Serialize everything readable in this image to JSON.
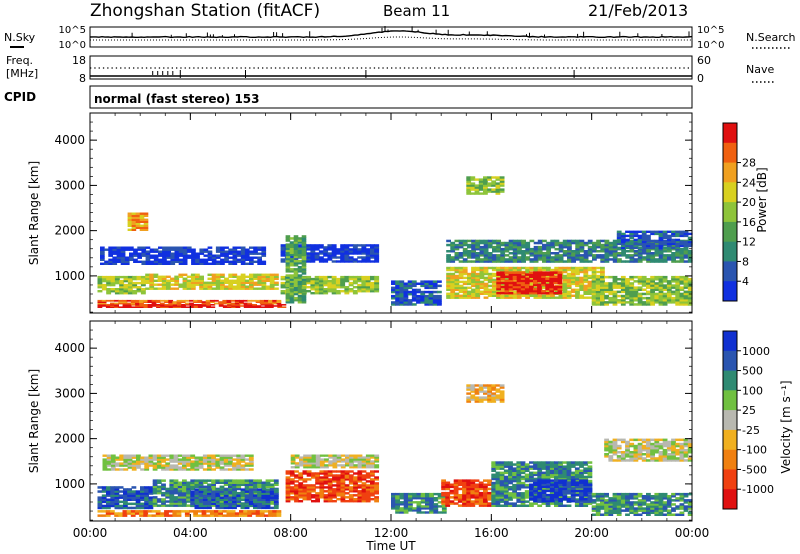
{
  "header": {
    "station": "Zhongshan Station (fitACF)",
    "beam": "Beam 11",
    "date": "21/Feb/2013"
  },
  "strips": {
    "nsky": {
      "label": "N.Sky",
      "ytop": "10^5",
      "ybottom": "10^0",
      "right_top": "10^5",
      "right_bottom": "10^0",
      "right_label": "N.Search"
    },
    "freq": {
      "label_top": "Freq.",
      "label_unit": "[MHz]",
      "ytop": "18",
      "ybottom": "8",
      "right_top": "60",
      "right_bottom": "0",
      "right_label": "Nave"
    },
    "cpid": {
      "label": "CPID",
      "text": "normal (fast stereo) 153"
    }
  },
  "chart_data": [
    {
      "type": "heatmap",
      "panel": "power",
      "xlabel": "Time UT",
      "ylabel": "Slant Range [km]",
      "xticks": [
        "00:00",
        "04:00",
        "08:00",
        "12:00",
        "16:00",
        "20:00",
        "00:00"
      ],
      "yticks": [
        "1000",
        "2000",
        "3000",
        "4000"
      ],
      "xlim": [
        0,
        24
      ],
      "ylim": [
        180,
        4600
      ],
      "colorbar": {
        "label": "Power [dB]",
        "ticks": [
          "4",
          "8",
          "12",
          "16",
          "20",
          "24",
          "28"
        ],
        "colors": [
          "#1030e0",
          "#2a55b0",
          "#2f8a72",
          "#4f9e4e",
          "#8ec43a",
          "#d8d020",
          "#f0a020",
          "#f06010",
          "#e01010"
        ]
      },
      "regions": [
        {
          "t0": 0.3,
          "t1": 7.8,
          "r0": 300,
          "r1": 380,
          "level": 8
        },
        {
          "t0": 0.3,
          "t1": 7.6,
          "r0": 380,
          "r1": 470,
          "level": 7
        },
        {
          "t0": 0.3,
          "t1": 2.2,
          "r0": 600,
          "r1": 1000,
          "level": 4
        },
        {
          "t0": 2.2,
          "t1": 7.5,
          "r0": 700,
          "r1": 1050,
          "level": 5
        },
        {
          "t0": 0.4,
          "t1": 7.0,
          "r0": 1250,
          "r1": 1650,
          "level": 0
        },
        {
          "t0": 1.5,
          "t1": 2.3,
          "r0": 2000,
          "r1": 2400,
          "level": 6
        },
        {
          "t0": 7.6,
          "t1": 11.5,
          "r0": 1300,
          "r1": 1700,
          "level": 0
        },
        {
          "t0": 7.6,
          "t1": 11.5,
          "r0": 600,
          "r1": 1000,
          "level": 4
        },
        {
          "t0": 7.8,
          "t1": 8.6,
          "r0": 400,
          "r1": 1900,
          "level": 3
        },
        {
          "t0": 12.0,
          "t1": 14.0,
          "r0": 350,
          "r1": 900,
          "level": 1
        },
        {
          "t0": 14.2,
          "t1": 20.5,
          "r0": 500,
          "r1": 1200,
          "level": 5
        },
        {
          "t0": 16.2,
          "t1": 18.8,
          "r0": 600,
          "r1": 1100,
          "level": 8
        },
        {
          "t0": 14.2,
          "t1": 24.0,
          "r0": 1300,
          "r1": 1800,
          "level": 2
        },
        {
          "t0": 20.0,
          "t1": 24.0,
          "r0": 350,
          "r1": 1000,
          "level": 4
        },
        {
          "t0": 21.0,
          "t1": 24.0,
          "r0": 1600,
          "r1": 2000,
          "level": 1
        },
        {
          "t0": 15.0,
          "t1": 16.5,
          "r0": 2800,
          "r1": 3200,
          "level": 4
        }
      ]
    },
    {
      "type": "heatmap",
      "panel": "velocity",
      "xlabel": "Time UT",
      "ylabel": "Slant Range [km]",
      "xticks": [
        "00:00",
        "04:00",
        "08:00",
        "12:00",
        "16:00",
        "20:00",
        "00:00"
      ],
      "yticks": [
        "1000",
        "2000",
        "3000",
        "4000"
      ],
      "xlim": [
        0,
        24
      ],
      "ylim": [
        180,
        4600
      ],
      "colorbar": {
        "label": "Velocity [m s⁻¹]",
        "ticks": [
          "1000",
          "500",
          "100",
          "25",
          "-25",
          "-100",
          "-500",
          "-1000"
        ],
        "colors": [
          "#1030d0",
          "#2a55b0",
          "#2f8a72",
          "#70c040",
          "#b8b8b0",
          "#f0b020",
          "#f08010",
          "#f04010",
          "#e01010"
        ]
      },
      "regions": [
        {
          "t0": 0.3,
          "t1": 2.5,
          "r0": 450,
          "r1": 950,
          "level": 1
        },
        {
          "t0": 2.5,
          "t1": 7.5,
          "r0": 500,
          "r1": 1100,
          "level": 2
        },
        {
          "t0": 0.3,
          "t1": 7.6,
          "r0": 280,
          "r1": 420,
          "level": 6
        },
        {
          "t0": 4.0,
          "t1": 7.5,
          "r0": 450,
          "r1": 900,
          "level": 1
        },
        {
          "t0": 0.5,
          "t1": 6.5,
          "r0": 1300,
          "r1": 1650,
          "level": 4
        },
        {
          "t0": 7.8,
          "t1": 11.5,
          "r0": 600,
          "r1": 1300,
          "level": 7
        },
        {
          "t0": 8.0,
          "t1": 11.5,
          "r0": 1350,
          "r1": 1650,
          "level": 4
        },
        {
          "t0": 12.0,
          "t1": 14.2,
          "r0": 350,
          "r1": 800,
          "level": 2
        },
        {
          "t0": 14.0,
          "t1": 16.0,
          "r0": 500,
          "r1": 1100,
          "level": 7
        },
        {
          "t0": 16.0,
          "t1": 20.0,
          "r0": 500,
          "r1": 1500,
          "level": 2
        },
        {
          "t0": 17.5,
          "t1": 20.0,
          "r0": 600,
          "r1": 1100,
          "level": 0
        },
        {
          "t0": 20.0,
          "t1": 24.0,
          "r0": 300,
          "r1": 800,
          "level": 2
        },
        {
          "t0": 20.5,
          "t1": 24.0,
          "r0": 1500,
          "r1": 2000,
          "level": 4
        },
        {
          "t0": 15.0,
          "t1": 16.5,
          "r0": 2800,
          "r1": 3200,
          "level": 5
        }
      ]
    }
  ]
}
